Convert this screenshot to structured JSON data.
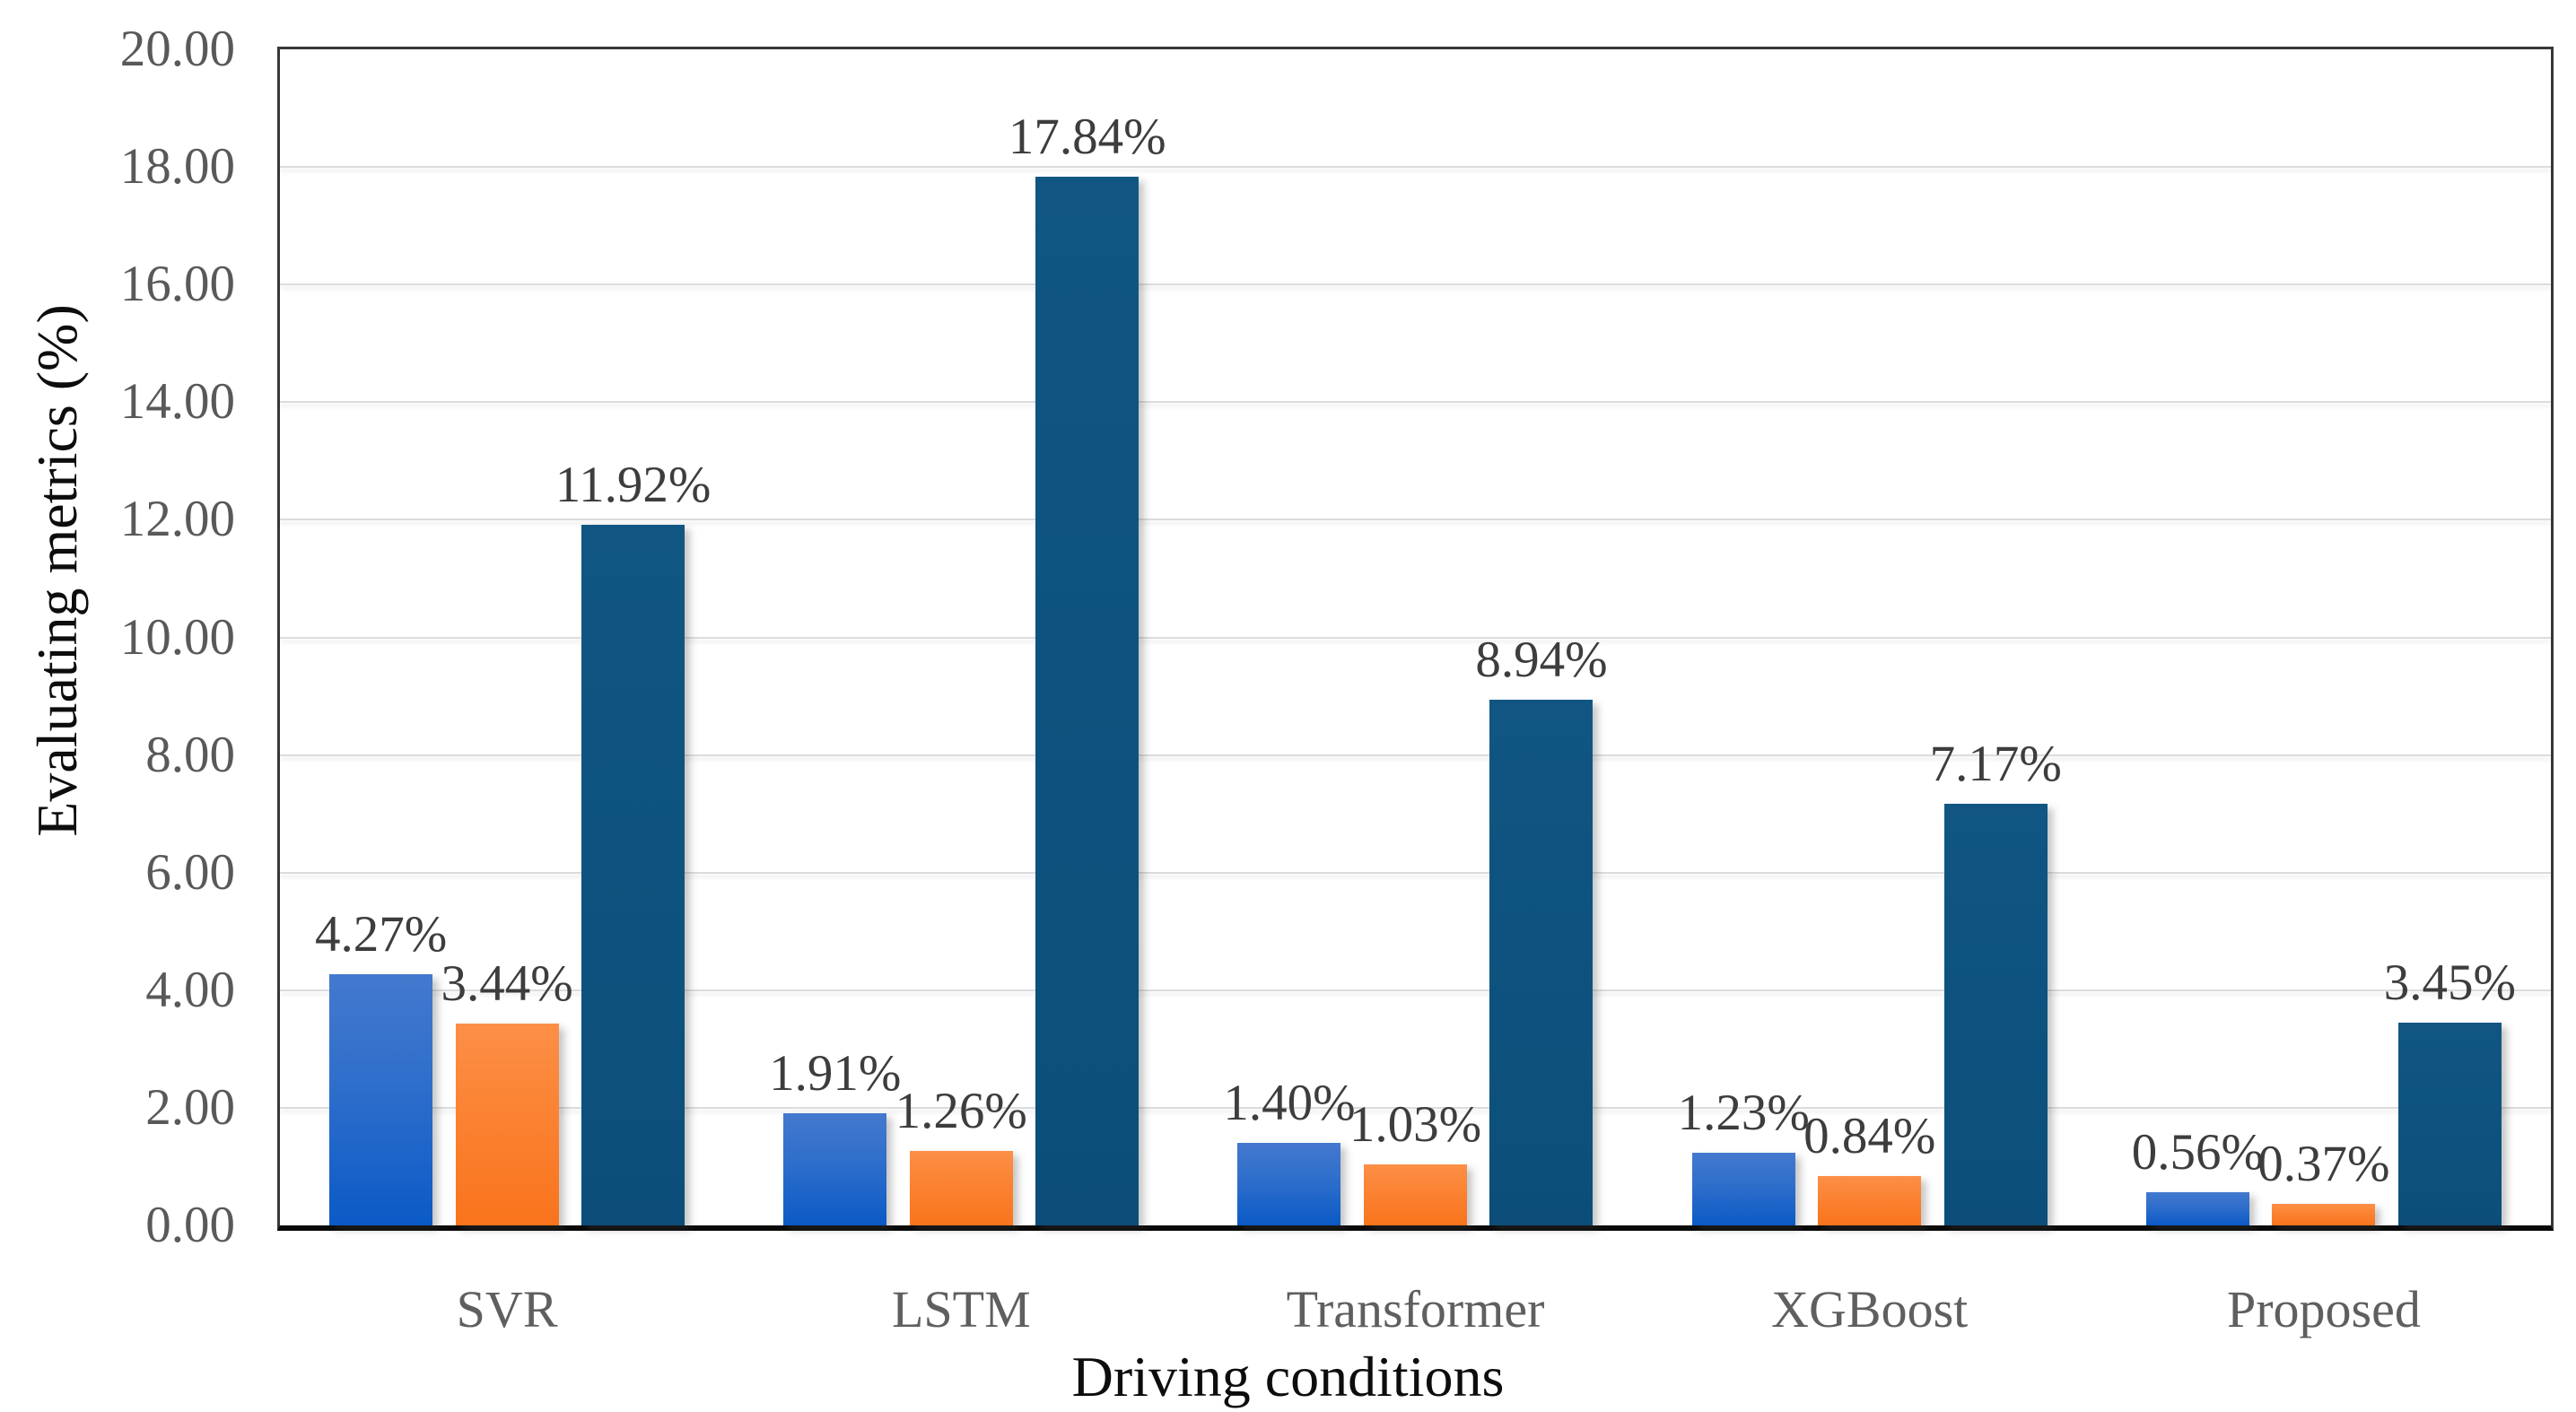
{
  "chart_data": {
    "type": "bar",
    "title": "",
    "xlabel": "Driving conditions",
    "ylabel": "Evaluating metrics (%)",
    "categories": [
      "SVR",
      "LSTM",
      "Transformer",
      "XGBoost",
      "Proposed"
    ],
    "series": [
      {
        "color": "#2e6ecb",
        "color_top": "#4479ce",
        "color_bottom": "#0b5ac6",
        "values": [
          4.27,
          1.91,
          1.4,
          1.23,
          0.56
        ],
        "value_labels": [
          "4.27%",
          "1.91%",
          "1.40%",
          "1.23%",
          "0.56%"
        ]
      },
      {
        "color": "#fb8130",
        "color_top": "#fc8f47",
        "color_bottom": "#f9741c",
        "values": [
          3.44,
          1.26,
          1.03,
          0.84,
          0.37
        ],
        "value_labels": [
          "3.44%",
          "1.26%",
          "1.03%",
          "0.84%",
          "0.37%"
        ]
      },
      {
        "color": "#0d527e",
        "color_top": "#115682",
        "color_bottom": "#0c4e79",
        "values": [
          11.92,
          17.84,
          8.94,
          7.17,
          3.45
        ],
        "value_labels": [
          "11.92%",
          "17.84%",
          "8.94%",
          "7.17%",
          "3.45%"
        ]
      }
    ],
    "ylim": [
      0,
      20
    ],
    "ytick_step": 2,
    "ytick_labels": [
      "0.00",
      "2.00",
      "4.00",
      "6.00",
      "8.00",
      "10.00",
      "12.00",
      "14.00",
      "16.00",
      "18.00",
      "20.00"
    ],
    "grid": "horizontal",
    "legend": "none",
    "colors": {
      "gridline": "#dcdcdc",
      "plot_border": "#383838",
      "axis_line": "#0a0a0a",
      "tick_label": "#595959",
      "category_label": "#5f5f5f",
      "value_label": "#3d3d3d",
      "axis_title": "#0d0d0d"
    }
  }
}
